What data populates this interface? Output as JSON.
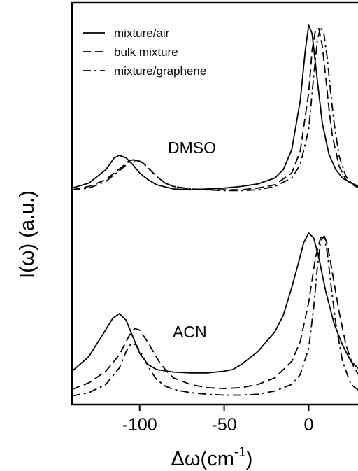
{
  "chart_data": {
    "type": "line",
    "xlabel_main": "Δω(cm",
    "xlabel_sup": "-1",
    "xlabel_close": ")",
    "ylabel": "I(ω) (a.u.)",
    "xlim": [
      -140,
      30
    ],
    "x_ticks": [
      -100,
      -50,
      0
    ],
    "x_tick_labels": [
      "-100",
      "-50",
      "0"
    ],
    "grid": false,
    "legend_position": "top-left",
    "legend": [
      {
        "name": "mixture/air",
        "style": "solid"
      },
      {
        "name": "bulk mixture",
        "style": "dashed"
      },
      {
        "name": "mixture/graphene",
        "style": "dashdot"
      }
    ],
    "annotations": [
      "DMSO",
      "ACN"
    ],
    "panels": [
      {
        "label": "DMSO",
        "series": [
          {
            "style": "solid",
            "x": [
              -140,
              -130,
              -120,
              -115,
              -112,
              -108,
              -104,
              -100,
              -95,
              -90,
              -80,
              -70,
              -60,
              -50,
              -40,
              -30,
              -20,
              -15,
              -10,
              -5,
              -2,
              0,
              2,
              5,
              8,
              12,
              16,
              20,
              25,
              30
            ],
            "y": [
              0.03,
              0.06,
              0.14,
              0.21,
              0.225,
              0.21,
              0.17,
              0.12,
              0.08,
              0.05,
              0.025,
              0.02,
              0.025,
              0.03,
              0.04,
              0.055,
              0.09,
              0.14,
              0.26,
              0.55,
              0.85,
              1.0,
              0.95,
              0.68,
              0.42,
              0.23,
              0.14,
              0.09,
              0.06,
              0.04
            ]
          },
          {
            "style": "dashed",
            "x": [
              -140,
              -130,
              -120,
              -110,
              -106,
              -102,
              -98,
              -94,
              -90,
              -85,
              -80,
              -70,
              -60,
              -50,
              -40,
              -30,
              -20,
              -10,
              -5,
              0,
              2,
              4,
              6,
              8,
              10,
              12,
              14,
              18,
              22,
              26,
              30
            ],
            "y": [
              0.02,
              0.04,
              0.08,
              0.16,
              0.195,
              0.2,
              0.18,
              0.14,
              0.1,
              0.06,
              0.04,
              0.025,
              0.02,
              0.02,
              0.02,
              0.03,
              0.05,
              0.12,
              0.25,
              0.6,
              0.85,
              0.97,
              0.98,
              0.88,
              0.7,
              0.5,
              0.34,
              0.16,
              0.08,
              0.05,
              0.03
            ]
          },
          {
            "style": "dashdot",
            "x": [
              -140,
              -130,
              -120,
              -110,
              -106,
              -102,
              -98,
              -94,
              -90,
              -85,
              -80,
              -70,
              -60,
              -50,
              -40,
              -30,
              -20,
              -10,
              -5,
              0,
              3,
              5,
              7,
              9,
              11,
              13,
              15,
              18,
              22,
              26,
              30
            ],
            "y": [
              0.02,
              0.03,
              0.07,
              0.15,
              0.185,
              0.195,
              0.18,
              0.14,
              0.1,
              0.06,
              0.04,
              0.025,
              0.02,
              0.015,
              0.015,
              0.02,
              0.04,
              0.09,
              0.17,
              0.38,
              0.7,
              0.9,
              0.99,
              0.95,
              0.8,
              0.6,
              0.42,
              0.22,
              0.1,
              0.05,
              0.03
            ]
          }
        ]
      },
      {
        "label": "ACN",
        "series": [
          {
            "style": "solid",
            "x": [
              -140,
              -130,
              -122,
              -116,
              -112,
              -108,
              -104,
              -100,
              -95,
              -90,
              -80,
              -70,
              -60,
              -50,
              -45,
              -40,
              -35,
              -30,
              -20,
              -15,
              -10,
              -6,
              -3,
              0,
              3,
              6,
              10,
              15,
              20,
              25,
              30
            ],
            "y": [
              0.16,
              0.25,
              0.38,
              0.48,
              0.51,
              0.47,
              0.37,
              0.27,
              0.2,
              0.17,
              0.155,
              0.15,
              0.15,
              0.16,
              0.17,
              0.2,
              0.24,
              0.28,
              0.4,
              0.5,
              0.67,
              0.82,
              0.94,
              1.0,
              0.97,
              0.85,
              0.65,
              0.45,
              0.32,
              0.22,
              0.17
            ]
          },
          {
            "style": "dashed",
            "x": [
              -140,
              -130,
              -120,
              -112,
              -106,
              -103,
              -100,
              -96,
              -92,
              -88,
              -84,
              -80,
              -70,
              -60,
              -50,
              -40,
              -30,
              -20,
              -10,
              -5,
              0,
              4,
              7,
              9,
              11,
              13,
              15,
              18,
              22,
              26,
              30
            ],
            "y": [
              0.05,
              0.09,
              0.16,
              0.26,
              0.38,
              0.42,
              0.41,
              0.35,
              0.28,
              0.21,
              0.16,
              0.12,
              0.08,
              0.06,
              0.055,
              0.06,
              0.08,
              0.12,
              0.22,
              0.34,
              0.58,
              0.85,
              0.97,
              0.99,
              0.93,
              0.82,
              0.7,
              0.52,
              0.32,
              0.2,
              0.13
            ]
          },
          {
            "style": "dashdot",
            "x": [
              -140,
              -130,
              -120,
              -112,
              -108,
              -105,
              -102,
              -98,
              -94,
              -90,
              -85,
              -80,
              -70,
              -60,
              -50,
              -40,
              -30,
              -20,
              -10,
              -5,
              0,
              3,
              5,
              7,
              9,
              11,
              13,
              16,
              20,
              25,
              30
            ],
            "y": [
              0.01,
              0.03,
              0.08,
              0.18,
              0.28,
              0.33,
              0.32,
              0.25,
              0.17,
              0.11,
              0.07,
              0.05,
              0.03,
              0.02,
              0.015,
              0.015,
              0.02,
              0.04,
              0.08,
              0.14,
              0.3,
              0.55,
              0.78,
              0.95,
              0.98,
              0.88,
              0.7,
              0.45,
              0.22,
              0.08,
              0.04
            ]
          }
        ]
      }
    ]
  }
}
